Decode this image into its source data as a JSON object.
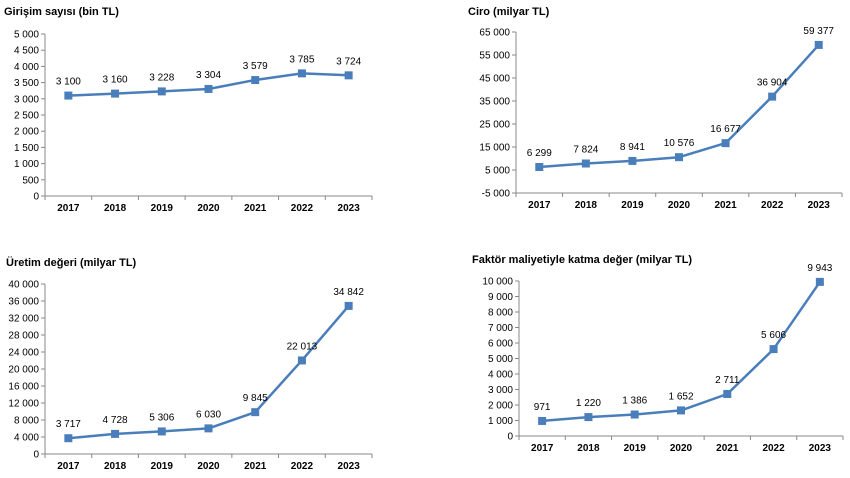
{
  "chart_data": [
    {
      "type": "line",
      "title": "Girişim sayısı (bin TL)",
      "categories": [
        "2017",
        "2018",
        "2019",
        "2020",
        "2021",
        "2022",
        "2023"
      ],
      "series": [
        {
          "values": [
            3100,
            3160,
            3228,
            3304,
            3579,
            3785,
            3724
          ]
        }
      ],
      "data_labels": [
        "3 100",
        "3 160",
        "3 228",
        "3 304",
        "3 579",
        "3 785",
        "3 724"
      ],
      "ylim": [
        0,
        5000
      ],
      "yticks": [
        0,
        500,
        1000,
        1500,
        2000,
        2500,
        3000,
        3500,
        4000,
        4500,
        5000
      ],
      "ytick_labels": [
        "0",
        "500",
        "1 000",
        "1 500",
        "2 000",
        "2 500",
        "3 000",
        "3 500",
        "4 000",
        "4 500",
        "5 000"
      ],
      "grid": false,
      "color": "#4a7ebb"
    },
    {
      "type": "line",
      "title": "Ciro (milyar TL)",
      "categories": [
        "2017",
        "2018",
        "2019",
        "2020",
        "2021",
        "2022",
        "2023"
      ],
      "series": [
        {
          "values": [
            6299,
            7824,
            8941,
            10576,
            16677,
            36904,
            59377
          ]
        }
      ],
      "data_labels": [
        "6 299",
        "7 824",
        "8 941",
        "10 576",
        "16 677",
        "36 904",
        "59 377"
      ],
      "ylim": [
        -5000,
        65000
      ],
      "yticks": [
        -5000,
        5000,
        15000,
        25000,
        35000,
        45000,
        55000,
        65000
      ],
      "ytick_labels": [
        "-5 000",
        "5 000",
        "15 000",
        "25 000",
        "35 000",
        "45 000",
        "55 000",
        "65 000"
      ],
      "grid": false,
      "color": "#4a7ebb"
    },
    {
      "type": "line",
      "title": "Üretim değeri (milyar TL)",
      "categories": [
        "2017",
        "2018",
        "2019",
        "2020",
        "2021",
        "2022",
        "2023"
      ],
      "series": [
        {
          "values": [
            3717,
            4728,
            5306,
            6030,
            9845,
            22013,
            34842
          ]
        }
      ],
      "data_labels": [
        "3 717",
        "4 728",
        "5 306",
        "6 030",
        "9 845",
        "22 013",
        "34 842"
      ],
      "ylim": [
        0,
        40000
      ],
      "yticks": [
        0,
        4000,
        8000,
        12000,
        16000,
        20000,
        24000,
        28000,
        32000,
        36000,
        40000
      ],
      "ytick_labels": [
        "0",
        "4 000",
        "8 000",
        "12 000",
        "16 000",
        "20 000",
        "24 000",
        "28 000",
        "32 000",
        "36 000",
        "40 000"
      ],
      "grid": false,
      "color": "#4a7ebb"
    },
    {
      "type": "line",
      "title": "Faktör maliyetiyle katma değer (milyar TL)",
      "categories": [
        "2017",
        "2018",
        "2019",
        "2020",
        "2021",
        "2022",
        "2023"
      ],
      "series": [
        {
          "values": [
            971,
            1220,
            1386,
            1652,
            2711,
            5606,
            9943
          ]
        }
      ],
      "data_labels": [
        "971",
        "1 220",
        "1 386",
        "1 652",
        "2 711",
        "5 606",
        "9 943"
      ],
      "ylim": [
        0,
        10000
      ],
      "yticks": [
        0,
        1000,
        2000,
        3000,
        4000,
        5000,
        6000,
        7000,
        8000,
        9000,
        10000
      ],
      "ytick_labels": [
        "0",
        "1 000",
        "2 000",
        "3 000",
        "4 000",
        "5 000",
        "6 000",
        "7 000",
        "8 000",
        "9 000",
        "10 000"
      ],
      "grid": false,
      "color": "#4a7ebb"
    }
  ]
}
